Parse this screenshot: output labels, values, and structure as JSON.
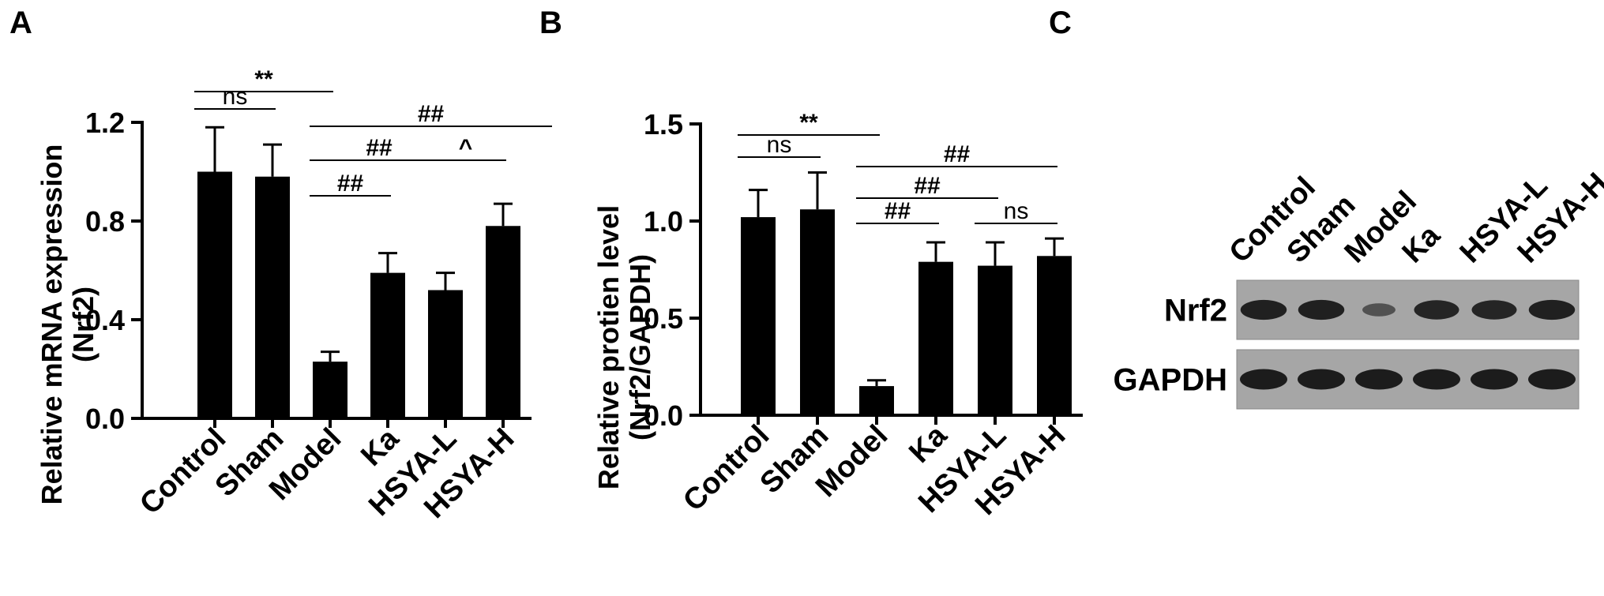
{
  "panels": {
    "a": "A",
    "b": "B",
    "c": "C"
  },
  "chart_data": [
    {
      "type": "bar",
      "title": "",
      "ylabel_line1": "Relative mRNA expression",
      "ylabel_line2": "(Nrf2)",
      "categories": [
        "Control",
        "Sham",
        "Model",
        "Ka",
        "HSYA-L",
        "HSYA-H"
      ],
      "values": [
        1.0,
        0.98,
        0.23,
        0.59,
        0.52,
        0.78
      ],
      "errors": [
        0.18,
        0.13,
        0.04,
        0.08,
        0.07,
        0.09
      ],
      "ylim": [
        0,
        1.2
      ],
      "yticks": [
        "0.0",
        "0.4",
        "0.8",
        "1.2"
      ],
      "annotations": [
        {
          "label": "**",
          "from": 0,
          "to": 2
        },
        {
          "label": "ns",
          "from": 0,
          "to": 1
        },
        {
          "label": "##",
          "from": 2,
          "to": 5
        },
        {
          "label": "##",
          "from": 2,
          "to": 4
        },
        {
          "label": "^",
          "from": 4,
          "to": 5
        },
        {
          "label": "##",
          "from": 2,
          "to": 3
        }
      ]
    },
    {
      "type": "bar",
      "title": "",
      "ylabel_line1": "Relative protien level",
      "ylabel_line2": "(Nrf2/GAPDH)",
      "categories": [
        "Control",
        "Sham",
        "Model",
        "Ka",
        "HSYA-L",
        "HSYA-H"
      ],
      "values": [
        1.02,
        1.06,
        0.15,
        0.79,
        0.77,
        0.82
      ],
      "errors": [
        0.14,
        0.19,
        0.03,
        0.1,
        0.12,
        0.09
      ],
      "ylim": [
        0,
        1.5
      ],
      "yticks": [
        "0.0",
        "0.5",
        "1.0",
        "1.5"
      ],
      "annotations": [
        {
          "label": "**",
          "from": 0,
          "to": 2
        },
        {
          "label": "ns",
          "from": 0,
          "to": 1
        },
        {
          "label": "##",
          "from": 2,
          "to": 5
        },
        {
          "label": "##",
          "from": 2,
          "to": 4
        },
        {
          "label": "##",
          "from": 2,
          "to": 3
        },
        {
          "label": "ns",
          "from": 4,
          "to": 5
        }
      ]
    }
  ],
  "blot": {
    "lanes": [
      "Control",
      "Sham",
      "Model",
      "Ka",
      "HSYA-L",
      "HSYA-H"
    ],
    "rows": [
      {
        "name": "Nrf2",
        "intensity": [
          0.95,
          0.95,
          0.4,
          0.9,
          0.9,
          0.95
        ]
      },
      {
        "name": "GAPDH",
        "intensity": [
          1,
          1,
          1,
          1,
          1,
          1
        ]
      }
    ],
    "colors": {
      "membrane": "#a6a6a6",
      "band": "#1c1c1c"
    }
  }
}
